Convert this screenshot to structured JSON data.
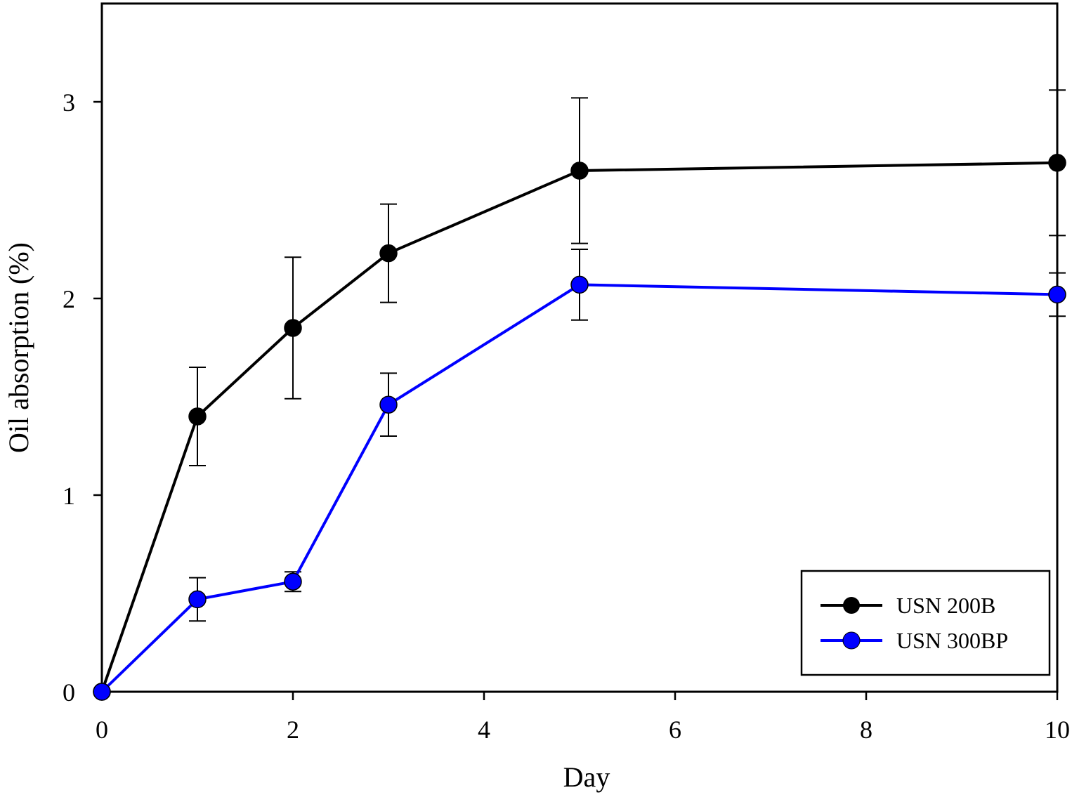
{
  "chart_data": {
    "type": "line",
    "xlabel": "Day",
    "ylabel": "Oil absorption (%)",
    "xlim": [
      0,
      10
    ],
    "ylim": [
      0,
      3.5
    ],
    "x_ticks": [
      "0",
      "2",
      "4",
      "6",
      "8",
      "10"
    ],
    "y_ticks": [
      "0",
      "1",
      "2",
      "3"
    ],
    "grid": false,
    "legend_position": "bottom-right",
    "x": [
      0,
      1,
      2,
      3,
      5,
      10
    ],
    "series": [
      {
        "name": "USN 200B",
        "color": "#000000",
        "values": [
          0,
          1.4,
          1.85,
          2.23,
          2.65,
          2.69
        ],
        "error": [
          0,
          0.25,
          0.36,
          0.25,
          0.37,
          0.37
        ]
      },
      {
        "name": "USN 300BP",
        "color": "#0000ff",
        "values": [
          0,
          0.47,
          0.56,
          1.46,
          2.07,
          2.02
        ],
        "error": [
          0,
          0.11,
          0.05,
          0.16,
          0.18,
          0.11
        ]
      }
    ]
  }
}
